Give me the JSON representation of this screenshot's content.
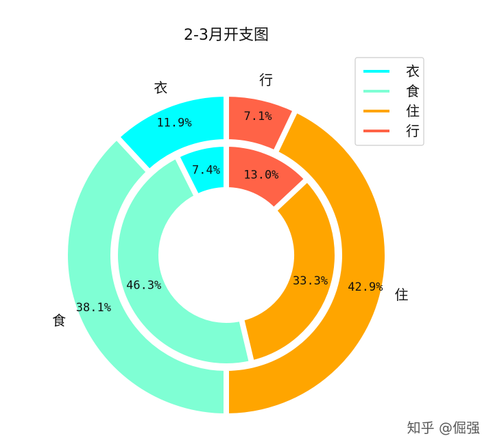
{
  "chart_data": {
    "type": "pie",
    "title": "2-3月开支图",
    "categories": [
      "衣",
      "食",
      "住",
      "行"
    ],
    "colors": [
      "#00ffff",
      "#7fffd4",
      "#ffa500",
      "#ff6347"
    ],
    "series": [
      {
        "ring": "outer",
        "values": [
          11.9,
          38.1,
          42.9,
          7.1
        ],
        "labels": [
          "11.9%",
          "38.1%",
          "42.9%",
          "7.1%"
        ]
      },
      {
        "ring": "inner",
        "values": [
          7.4,
          46.3,
          33.3,
          13.0
        ],
        "labels": [
          "7.4%",
          "46.3%",
          "33.3%",
          "13.0%"
        ]
      }
    ],
    "legend": {
      "position": "top-right",
      "entries": [
        "衣",
        "食",
        "住",
        "行"
      ]
    },
    "start_angle_deg": 90,
    "direction": "counterclockwise"
  },
  "watermark": "知乎 @倔强"
}
